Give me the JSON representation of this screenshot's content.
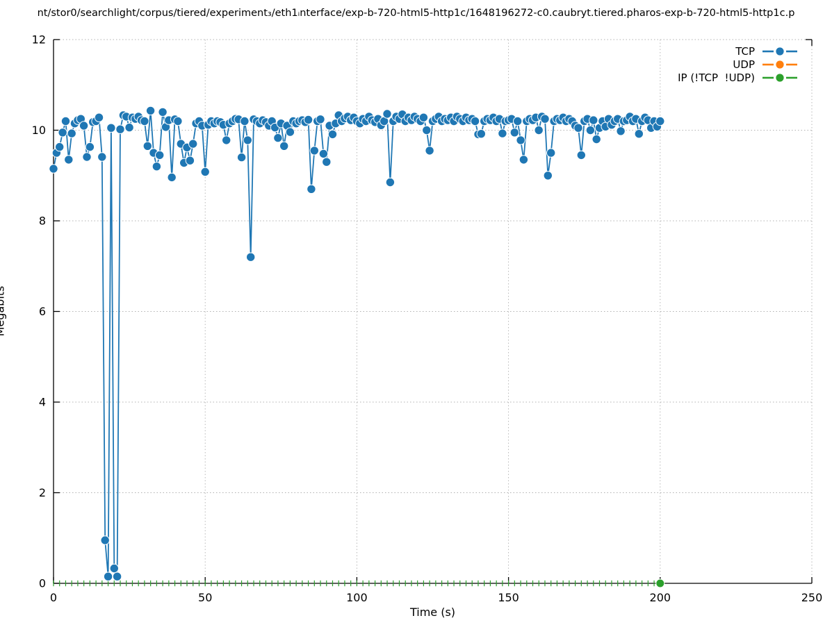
{
  "title": "nt/stor0/searchlight/corpus/tiered/experiment₃/eth1ᵢnterface/exp-b-720-html5-http1c/1648196272-c0.caubryt.tiered.pharos-exp-b-720-html5-http1c.p",
  "axes": {
    "xlabel": "Time (s)",
    "ylabel": "Megabits"
  },
  "chart_data": {
    "type": "line",
    "title": "nt/stor0/searchlight/corpus/tiered/experiment₃/eth1ᵢnterface/exp-b-720-html5-http1c/1648196272-c0.caubryt.tiered.pharos-exp-b-720-html5-http1c.p",
    "xlabel": "Time (s)",
    "ylabel": "Megabits",
    "xlim": [
      0,
      250
    ],
    "ylim": [
      0,
      12
    ],
    "xticks": [
      0,
      50,
      100,
      150,
      200,
      250
    ],
    "yticks": [
      0,
      2,
      4,
      6,
      8,
      10,
      12
    ],
    "grid": true,
    "grid_style": "dotted",
    "legend_position": "top-right-inside",
    "series": [
      {
        "name": "TCP",
        "color": "#1f77b4",
        "marker": "circle",
        "marker_edge": "#ffffff",
        "x_start": 0,
        "x_step": 1,
        "x_end": 200,
        "y": [
          9.15,
          9.5,
          9.63,
          9.95,
          10.2,
          9.35,
          9.93,
          10.15,
          10.22,
          10.25,
          10.1,
          9.41,
          9.63,
          10.18,
          10.2,
          10.28,
          9.41,
          0.95,
          0.15,
          10.05,
          0.33,
          0.15,
          10.02,
          10.33,
          10.3,
          10.06,
          10.28,
          10.25,
          10.3,
          10.22,
          10.2,
          9.65,
          10.43,
          9.5,
          9.2,
          9.45,
          10.4,
          10.07,
          10.22,
          8.96,
          10.24,
          10.2,
          9.7,
          9.28,
          9.62,
          9.33,
          9.7,
          10.15,
          10.2,
          10.1,
          9.08,
          10.12,
          10.2,
          10.15,
          10.2,
          10.18,
          10.12,
          9.78,
          10.15,
          10.2,
          10.25,
          10.24,
          9.4,
          10.2,
          9.78,
          7.2,
          10.24,
          10.2,
          10.15,
          10.22,
          10.18,
          10.1,
          10.2,
          10.06,
          9.83,
          10.15,
          9.65,
          10.1,
          9.96,
          10.2,
          10.15,
          10.2,
          10.22,
          10.18,
          10.23,
          8.7,
          9.55,
          10.2,
          10.24,
          9.48,
          9.3,
          10.1,
          9.91,
          10.15,
          10.33,
          10.2,
          10.26,
          10.3,
          10.22,
          10.28,
          10.2,
          10.15,
          10.25,
          10.2,
          10.3,
          10.22,
          10.18,
          10.25,
          10.11,
          10.2,
          10.36,
          8.85,
          10.2,
          10.3,
          10.25,
          10.35,
          10.2,
          10.28,
          10.22,
          10.3,
          10.25,
          10.2,
          10.28,
          10.0,
          9.55,
          10.2,
          10.25,
          10.3,
          10.2,
          10.25,
          10.22,
          10.28,
          10.2,
          10.3,
          10.25,
          10.2,
          10.28,
          10.22,
          10.25,
          10.2,
          9.91,
          9.92,
          10.2,
          10.25,
          10.22,
          10.28,
          10.2,
          10.25,
          9.93,
          10.2,
          10.22,
          10.25,
          9.95,
          10.2,
          9.78,
          9.35,
          10.2,
          10.25,
          10.22,
          10.28,
          10.0,
          10.3,
          10.25,
          9.0,
          9.5,
          10.2,
          10.25,
          10.22,
          10.28,
          10.2,
          10.25,
          10.2,
          10.1,
          10.05,
          9.45,
          10.2,
          10.25,
          10.0,
          10.22,
          9.8,
          10.05,
          10.2,
          10.08,
          10.25,
          10.12,
          10.2,
          10.25,
          9.98,
          10.2,
          10.22,
          10.3,
          10.2,
          10.25,
          9.92,
          10.2,
          10.28,
          10.22,
          10.05,
          10.2,
          10.08,
          10.2
        ]
      },
      {
        "name": "UDP",
        "color": "#ff7f0e",
        "marker": "circle",
        "x": [],
        "y": []
      },
      {
        "name": "IP (!TCP  !UDP)",
        "color": "#2ca02c",
        "marker": "circle",
        "style": "short vertical dash marks on baseline every 2 s",
        "y_constant": 0,
        "x_start": 0,
        "x_step": 2,
        "x_end": 200,
        "endpoint_marker": {
          "x": 200,
          "y": 0
        }
      }
    ]
  },
  "colors": {
    "tcp": "#1f77b4",
    "udp": "#ff7f0e",
    "ip": "#2ca02c",
    "grid": "#b0b0b0",
    "axis": "#000000"
  }
}
